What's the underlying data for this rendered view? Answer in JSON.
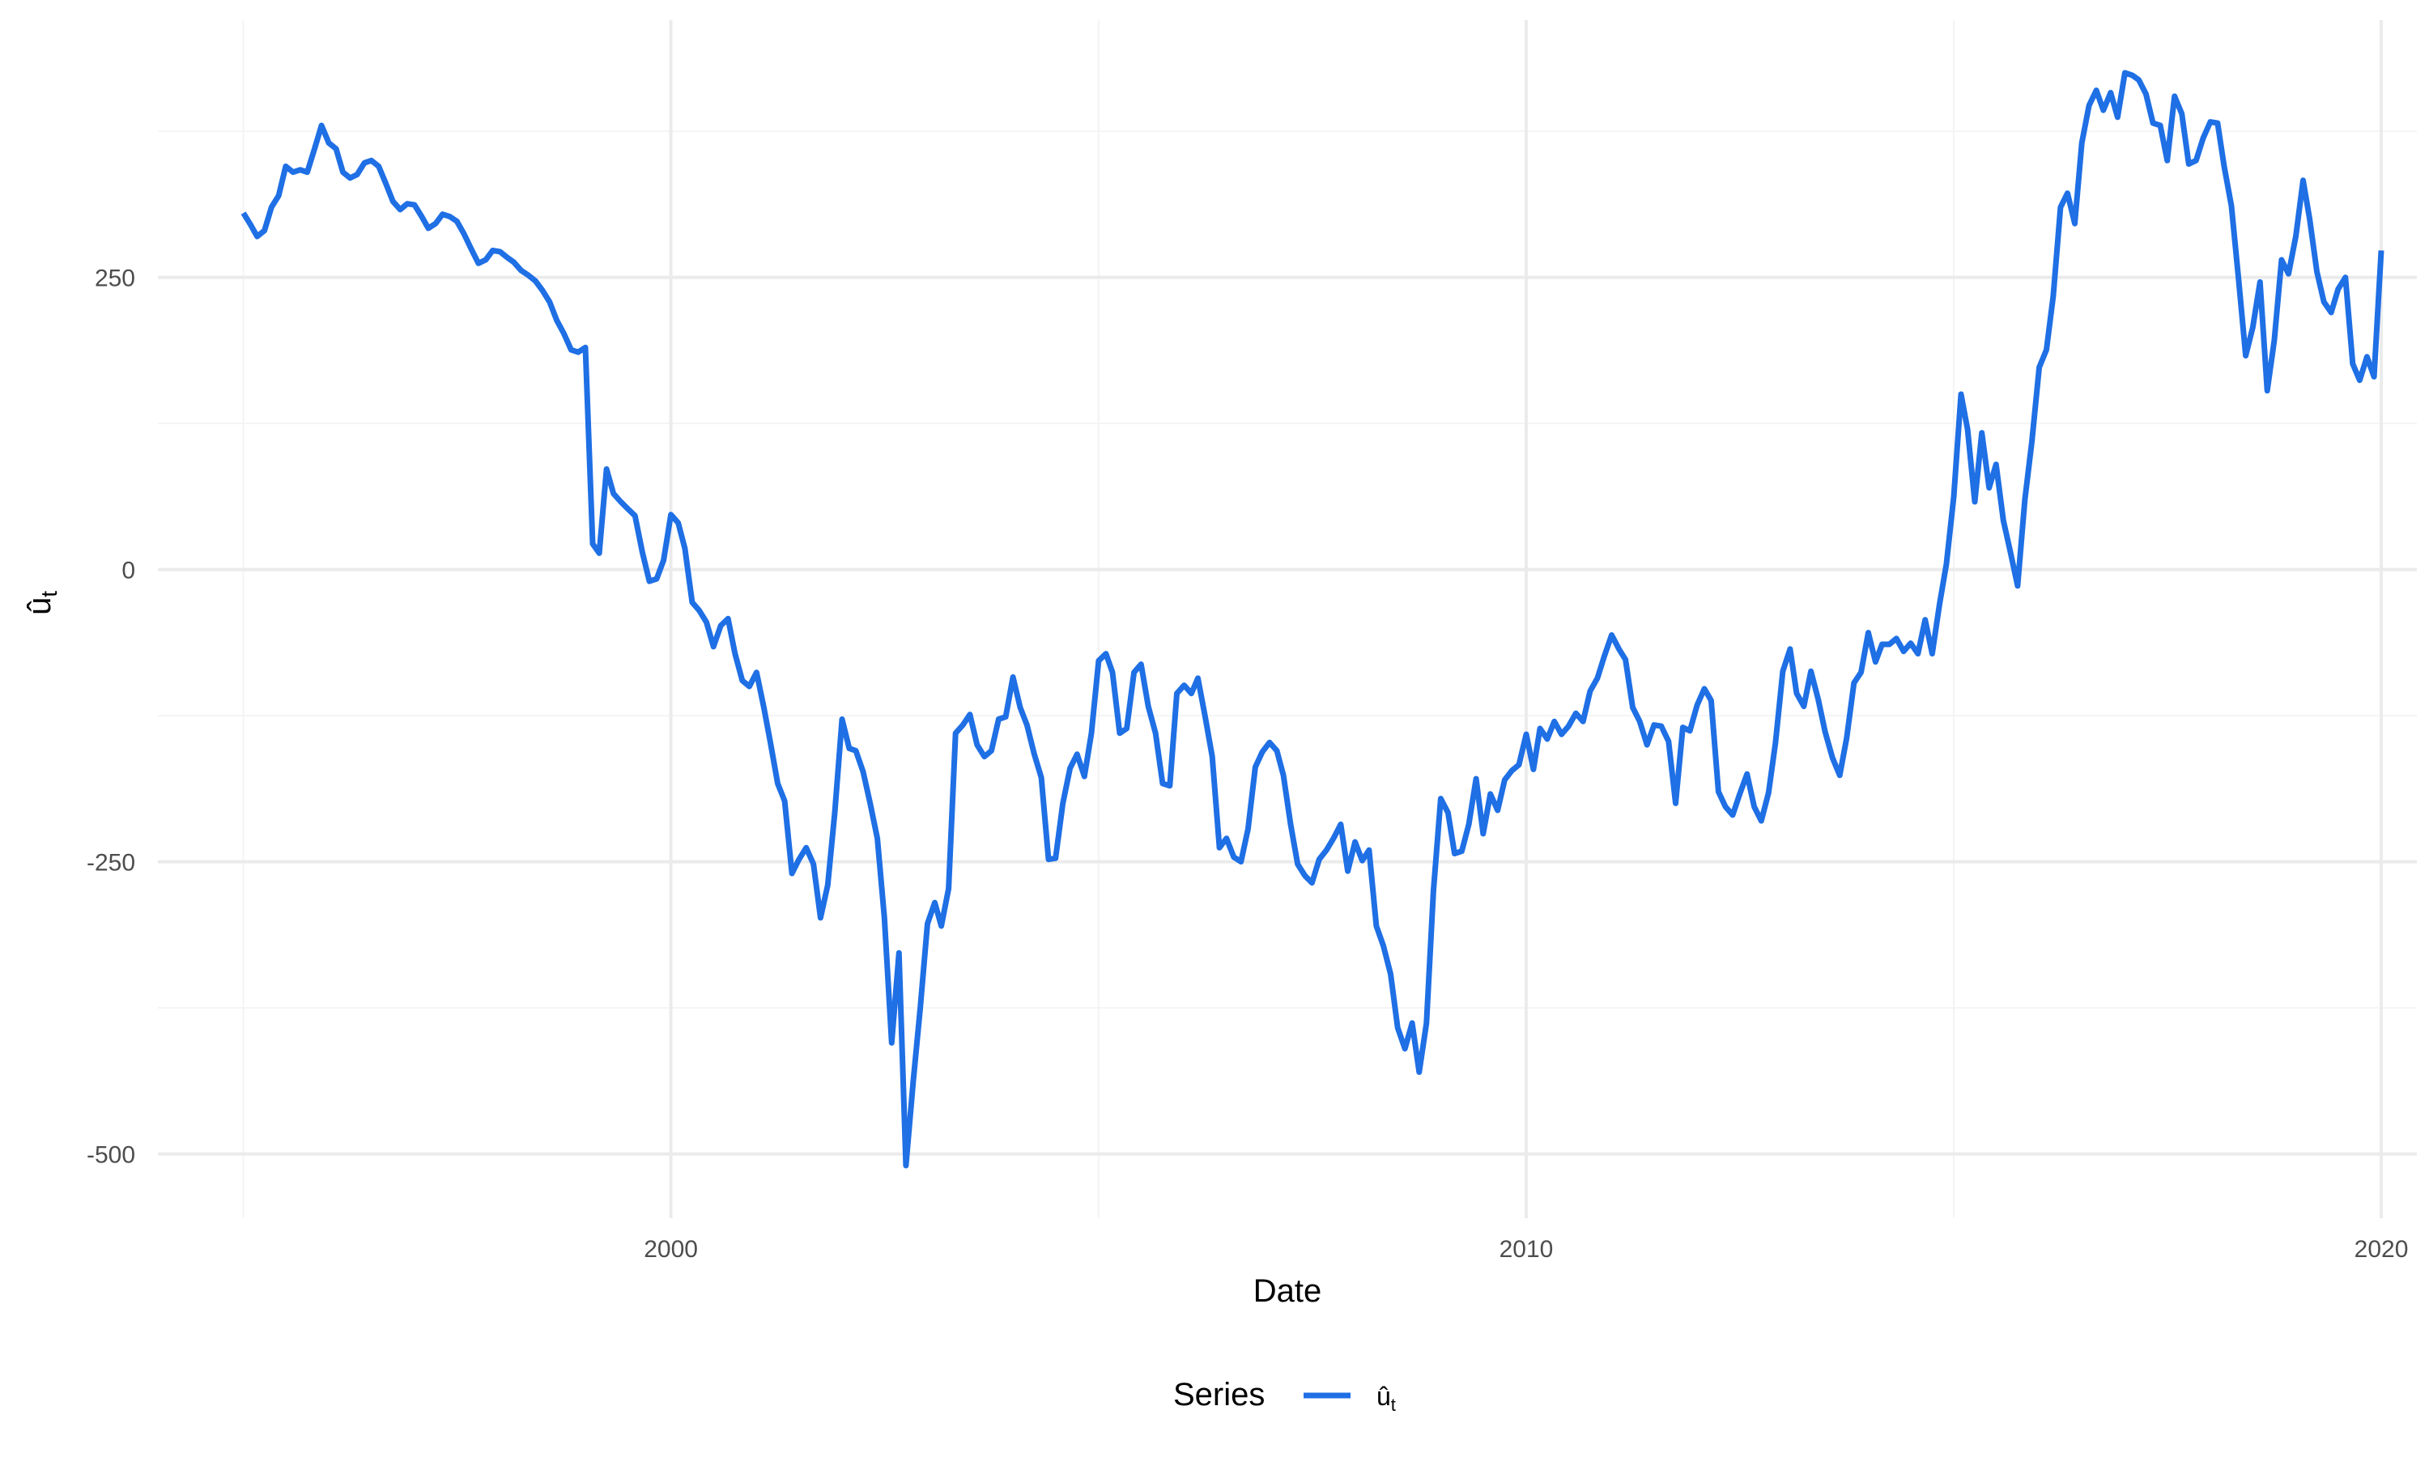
{
  "chart_data": {
    "type": "line",
    "title": "",
    "xlabel": "Date",
    "ylabel": "û_t",
    "ylabel_base": "û",
    "ylabel_sub": "t",
    "xlim": [
      "1994-01-01",
      "2020-06-01"
    ],
    "ylim": [
      -555,
      470
    ],
    "x_major_ticks": [
      "2000-01-01",
      "2010-01-01",
      "2020-01-01"
    ],
    "x_tick_labels": [
      "2000",
      "2010",
      "2020"
    ],
    "x_minor_ticks": [
      "1995-01-01",
      "2005-01-01",
      "2015-01-01"
    ],
    "y_major_ticks": [
      -500,
      -250,
      0,
      250
    ],
    "y_tick_labels": [
      "-500",
      "-250",
      "0",
      "250"
    ],
    "y_minor_ticks": [
      -375,
      -125,
      125,
      375
    ],
    "grid": true,
    "legend": {
      "position": "bottom",
      "title": "Series",
      "label_base": "û",
      "label_sub": "t"
    },
    "colors": {
      "line": "#1f6fe5",
      "grid_major": "#ebebeb",
      "grid_minor": "#f4f4f4"
    },
    "series": [
      {
        "name": "û_t",
        "x": [
          "1995-01",
          "1995-02",
          "1995-03",
          "1995-04",
          "1995-05",
          "1995-06",
          "1995-07",
          "1995-08",
          "1995-09",
          "1995-10",
          "1995-11",
          "1995-12",
          "1996-01",
          "1996-02",
          "1996-03",
          "1996-04",
          "1996-05",
          "1996-06",
          "1996-07",
          "1996-08",
          "1996-09",
          "1996-10",
          "1996-11",
          "1996-12",
          "1997-01",
          "1997-02",
          "1997-03",
          "1997-04",
          "1997-05",
          "1997-06",
          "1997-07",
          "1997-08",
          "1997-09",
          "1997-10",
          "1997-11",
          "1997-12",
          "1998-01",
          "1998-02",
          "1998-03",
          "1998-04",
          "1998-05",
          "1998-06",
          "1998-07",
          "1998-08",
          "1998-09",
          "1998-10",
          "1998-11",
          "1998-12",
          "1999-01",
          "1999-02",
          "1999-03",
          "1999-04",
          "1999-05",
          "1999-06",
          "1999-07",
          "1999-08",
          "1999-09",
          "1999-10",
          "1999-11",
          "1999-12",
          "2000-01",
          "2000-02",
          "2000-03",
          "2000-04",
          "2000-05",
          "2000-06",
          "2000-07",
          "2000-08",
          "2000-09",
          "2000-10",
          "2000-11",
          "2000-12",
          "2001-01",
          "2001-02",
          "2001-03",
          "2001-04",
          "2001-05",
          "2001-06",
          "2001-07",
          "2001-08",
          "2001-09",
          "2001-10",
          "2001-11",
          "2001-12",
          "2002-01",
          "2002-02",
          "2002-03",
          "2002-04",
          "2002-05",
          "2002-06",
          "2002-07",
          "2002-08",
          "2002-09",
          "2002-10",
          "2002-11",
          "2002-12",
          "2003-01",
          "2003-02",
          "2003-03",
          "2003-04",
          "2003-05",
          "2003-06",
          "2003-07",
          "2003-08",
          "2003-09",
          "2003-10",
          "2003-11",
          "2003-12",
          "2004-01",
          "2004-02",
          "2004-03",
          "2004-04",
          "2004-05",
          "2004-06",
          "2004-07",
          "2004-08",
          "2004-09",
          "2004-10",
          "2004-11",
          "2004-12",
          "2005-01",
          "2005-02",
          "2005-03",
          "2005-04",
          "2005-05",
          "2005-06",
          "2005-07",
          "2005-08",
          "2005-09",
          "2005-10",
          "2005-11",
          "2005-12",
          "2006-01",
          "2006-02",
          "2006-03",
          "2006-04",
          "2006-05",
          "2006-06",
          "2006-07",
          "2006-08",
          "2006-09",
          "2006-10",
          "2006-11",
          "2006-12",
          "2007-01",
          "2007-02",
          "2007-03",
          "2007-04",
          "2007-05",
          "2007-06",
          "2007-07",
          "2007-08",
          "2007-09",
          "2007-10",
          "2007-11",
          "2007-12",
          "2008-01",
          "2008-02",
          "2008-03",
          "2008-04",
          "2008-05",
          "2008-06",
          "2008-07",
          "2008-08",
          "2008-09",
          "2008-10",
          "2008-11",
          "2008-12",
          "2009-01",
          "2009-02",
          "2009-03",
          "2009-04",
          "2009-05",
          "2009-06",
          "2009-07",
          "2009-08",
          "2009-09",
          "2009-10",
          "2009-11",
          "2009-12",
          "2010-01",
          "2010-02",
          "2010-03",
          "2010-04",
          "2010-05",
          "2010-06",
          "2010-07",
          "2010-08",
          "2010-09",
          "2010-10",
          "2010-11",
          "2010-12",
          "2011-01",
          "2011-02",
          "2011-03",
          "2011-04",
          "2011-05",
          "2011-06",
          "2011-07",
          "2011-08",
          "2011-09",
          "2011-10",
          "2011-11",
          "2011-12",
          "2012-01",
          "2012-02",
          "2012-03",
          "2012-04",
          "2012-05",
          "2012-06",
          "2012-07",
          "2012-08",
          "2012-09",
          "2012-10",
          "2012-11",
          "2012-12",
          "2013-01",
          "2013-02",
          "2013-03",
          "2013-04",
          "2013-05",
          "2013-06",
          "2013-07",
          "2013-08",
          "2013-09",
          "2013-10",
          "2013-11",
          "2013-12",
          "2014-01",
          "2014-02",
          "2014-03",
          "2014-04",
          "2014-05",
          "2014-06",
          "2014-07",
          "2014-08",
          "2014-09",
          "2014-10",
          "2014-11",
          "2014-12",
          "2015-01",
          "2015-02",
          "2015-03",
          "2015-04",
          "2015-05",
          "2015-06",
          "2015-07",
          "2015-08",
          "2015-09",
          "2015-10",
          "2015-11",
          "2015-12",
          "2016-01",
          "2016-02",
          "2016-03",
          "2016-04",
          "2016-05",
          "2016-06",
          "2016-07",
          "2016-08",
          "2016-09",
          "2016-10",
          "2016-11",
          "2016-12",
          "2017-01",
          "2017-02",
          "2017-03",
          "2017-04",
          "2017-05",
          "2017-06",
          "2017-07",
          "2017-08",
          "2017-09",
          "2017-10",
          "2017-11",
          "2017-12",
          "2018-01",
          "2018-02",
          "2018-03",
          "2018-04",
          "2018-05",
          "2018-06",
          "2018-07",
          "2018-08",
          "2018-09",
          "2018-10",
          "2018-11",
          "2018-12",
          "2019-01",
          "2019-02",
          "2019-03",
          "2019-04",
          "2019-05",
          "2019-06",
          "2019-07",
          "2019-08",
          "2019-09",
          "2019-10",
          "2019-11",
          "2019-12",
          "2020-01"
        ],
        "values": [
          305,
          295,
          285,
          290,
          310,
          320,
          345,
          340,
          342,
          340,
          360,
          380,
          365,
          360,
          340,
          335,
          338,
          348,
          350,
          345,
          330,
          315,
          308,
          313,
          312,
          302,
          292,
          296,
          304,
          302,
          298,
          287,
          274,
          262,
          265,
          273,
          272,
          267,
          263,
          256,
          252,
          247,
          239,
          229,
          213,
          202,
          188,
          186,
          190,
          22,
          14,
          86,
          65,
          58,
          52,
          46,
          15,
          -10,
          -8,
          8,
          47,
          40,
          18,
          -28,
          -35,
          -45,
          -66,
          -48,
          -42,
          -72,
          -95,
          -100,
          -88,
          -118,
          -148,
          -183,
          -198,
          -260,
          -248,
          -238,
          -252,
          -298,
          -270,
          -208,
          -128,
          -153,
          -155,
          -173,
          -200,
          -230,
          -298,
          -405,
          -328,
          -510,
          -438,
          -375,
          -303,
          -285,
          -305,
          -273,
          -140,
          -133,
          -124,
          -150,
          -160,
          -155,
          -128,
          -126,
          -92,
          -118,
          -133,
          -158,
          -178,
          -248,
          -247,
          -200,
          -170,
          -158,
          -177,
          -140,
          -78,
          -72,
          -88,
          -140,
          -136,
          -88,
          -81,
          -117,
          -140,
          -183,
          -185,
          -106,
          -99,
          -106,
          -93,
          -126,
          -160,
          -238,
          -230,
          -246,
          -250,
          -222,
          -169,
          -156,
          -148,
          -155,
          -176,
          -218,
          -252,
          -262,
          -268,
          -248,
          -240,
          -230,
          -218,
          -258,
          -233,
          -249,
          -240,
          -305,
          -322,
          -346,
          -392,
          -410,
          -388,
          -430,
          -388,
          -275,
          -196,
          -208,
          -243,
          -241,
          -218,
          -179,
          -226,
          -192,
          -206,
          -180,
          -172,
          -167,
          -141,
          -171,
          -136,
          -145,
          -130,
          -141,
          -134,
          -123,
          -130,
          -104,
          -93,
          -74,
          -56,
          -68,
          -77,
          -118,
          -130,
          -150,
          -133,
          -134,
          -147,
          -200,
          -135,
          -138,
          -116,
          -102,
          -112,
          -190,
          -203,
          -210,
          -192,
          -175,
          -203,
          -215,
          -191,
          -148,
          -87,
          -68,
          -106,
          -117,
          -87,
          -111,
          -139,
          -161,
          -176,
          -144,
          -97,
          -88,
          -54,
          -79,
          -64,
          -64,
          -59,
          -70,
          -63,
          -72,
          -43,
          -72,
          -30,
          5,
          62,
          150,
          120,
          58,
          117,
          70,
          90,
          42,
          14,
          -14,
          60,
          110,
          173,
          188,
          234,
          310,
          322,
          296,
          365,
          397,
          410,
          393,
          408,
          387,
          425,
          423,
          419,
          407,
          382,
          380,
          350,
          405,
          390,
          347,
          350,
          369,
          383,
          382,
          345,
          311,
          250,
          183,
          207,
          246,
          153,
          196,
          265,
          253,
          285,
          333,
          300,
          255,
          229,
          220,
          240,
          250,
          176,
          162,
          182,
          165,
          273
        ]
      }
    ]
  }
}
